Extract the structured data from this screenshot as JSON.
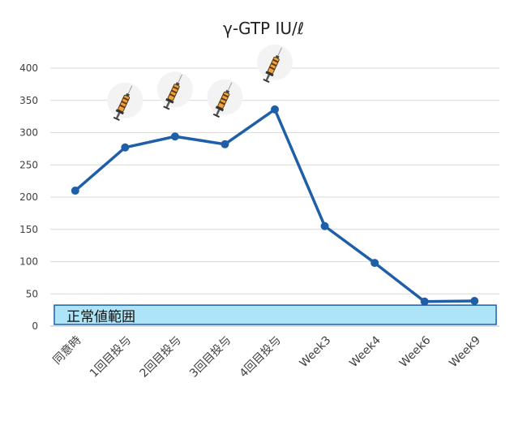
{
  "chart_data": {
    "type": "line",
    "title": "γ-GTP IU/ℓ",
    "categories": [
      "同意時",
      "1回目投与",
      "2回目投与",
      "3回目投与",
      "4回目投与",
      "Week3",
      "Week4",
      "Week6",
      "Week9"
    ],
    "series": [
      {
        "values": [
          210,
          277,
          294,
          282,
          336,
          155,
          98,
          38,
          39
        ]
      }
    ],
    "ylim": [
      0,
      400
    ],
    "yticks": [
      0,
      50,
      100,
      150,
      200,
      250,
      300,
      350,
      400
    ],
    "grid": true,
    "line_color": "#1f5fa8",
    "normal_range": {
      "label": "正常値範囲",
      "from": 0,
      "to": 30,
      "fill": "#aee4f7",
      "stroke": "#1f5fa8"
    },
    "injection_markers": {
      "icon": "syringe-icon",
      "at_categories": [
        "1回目投与",
        "2回目投与",
        "3回目投与",
        "4回目投与"
      ]
    }
  }
}
